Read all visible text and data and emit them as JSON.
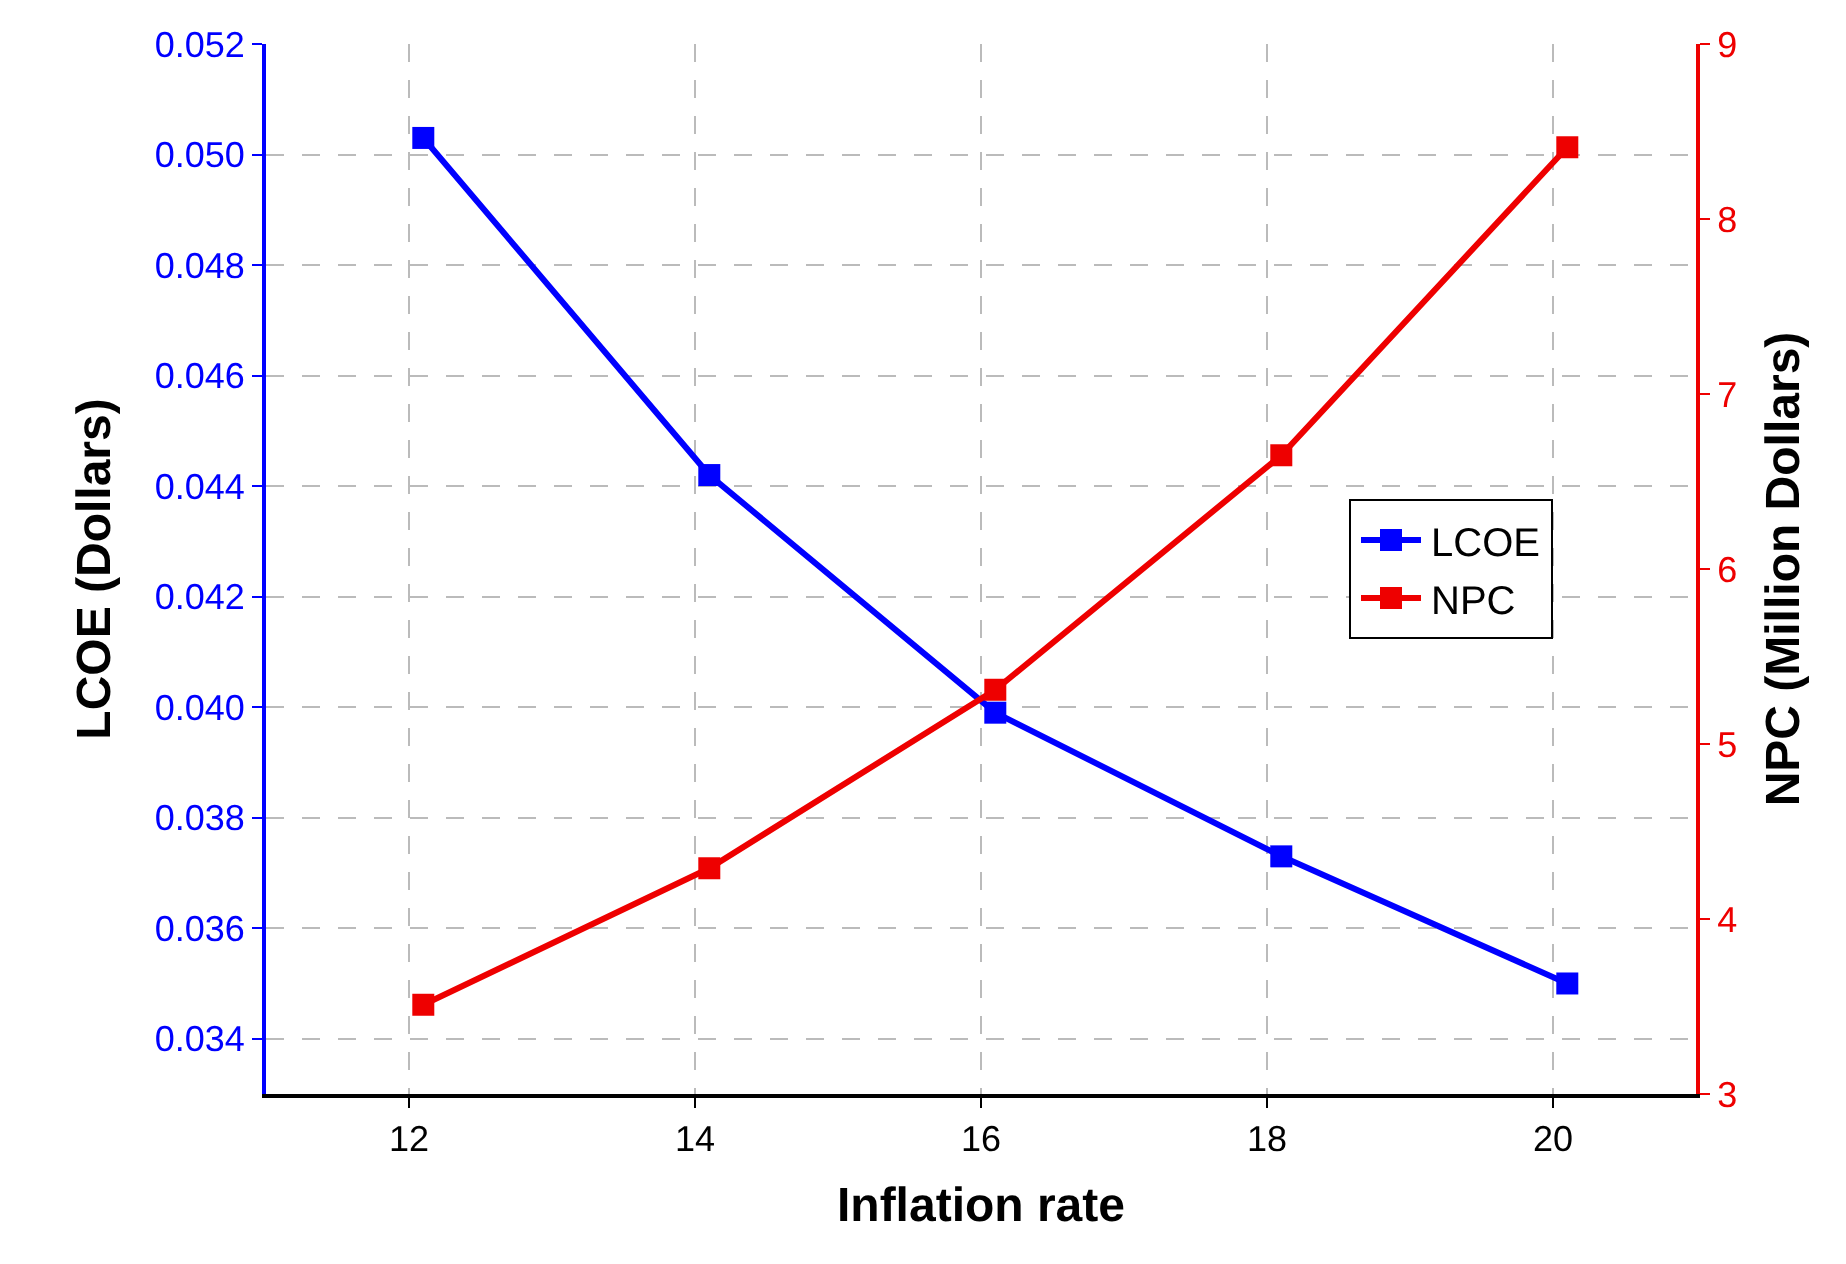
{
  "chart_data": {
    "type": "line",
    "xlabel": "Inflation rate",
    "ylabel": "LCOE (Dollars)",
    "y2label": "NPC (Million Dollars)",
    "x": [
      12.1,
      14.1,
      16.1,
      18.1,
      20.1
    ],
    "series": [
      {
        "name": "LCOE",
        "color": "#0000ff",
        "values": [
          0.0503,
          0.0442,
          0.0399,
          0.0373,
          0.035
        ]
      },
      {
        "name": "NPC",
        "color": "#ee0000",
        "axis": "y2",
        "values": [
          3.51,
          4.29,
          5.31,
          6.65,
          8.41
        ]
      }
    ],
    "xlim": [
      11,
      21
    ],
    "xticks": [
      12,
      14,
      16,
      18,
      20
    ],
    "ylim": [
      0.033,
      0.052
    ],
    "yticks": [
      {
        "value": 0.034,
        "label": "0.034"
      },
      {
        "value": 0.036,
        "label": "0.036"
      },
      {
        "value": 0.038,
        "label": "0.038"
      },
      {
        "value": 0.04,
        "label": "0.040"
      },
      {
        "value": 0.042,
        "label": "0.042"
      },
      {
        "value": 0.044,
        "label": "0.044"
      },
      {
        "value": 0.046,
        "label": "0.046"
      },
      {
        "value": 0.048,
        "label": "0.048"
      },
      {
        "value": 0.05,
        "label": "0.050"
      },
      {
        "value": 0.052,
        "label": "0.052"
      }
    ],
    "y2lim": [
      3,
      9
    ],
    "y2ticks": [
      3,
      4,
      5,
      6,
      7,
      8,
      9
    ],
    "grid": true,
    "legend": "right",
    "marker": "square",
    "line_style": "solid"
  }
}
